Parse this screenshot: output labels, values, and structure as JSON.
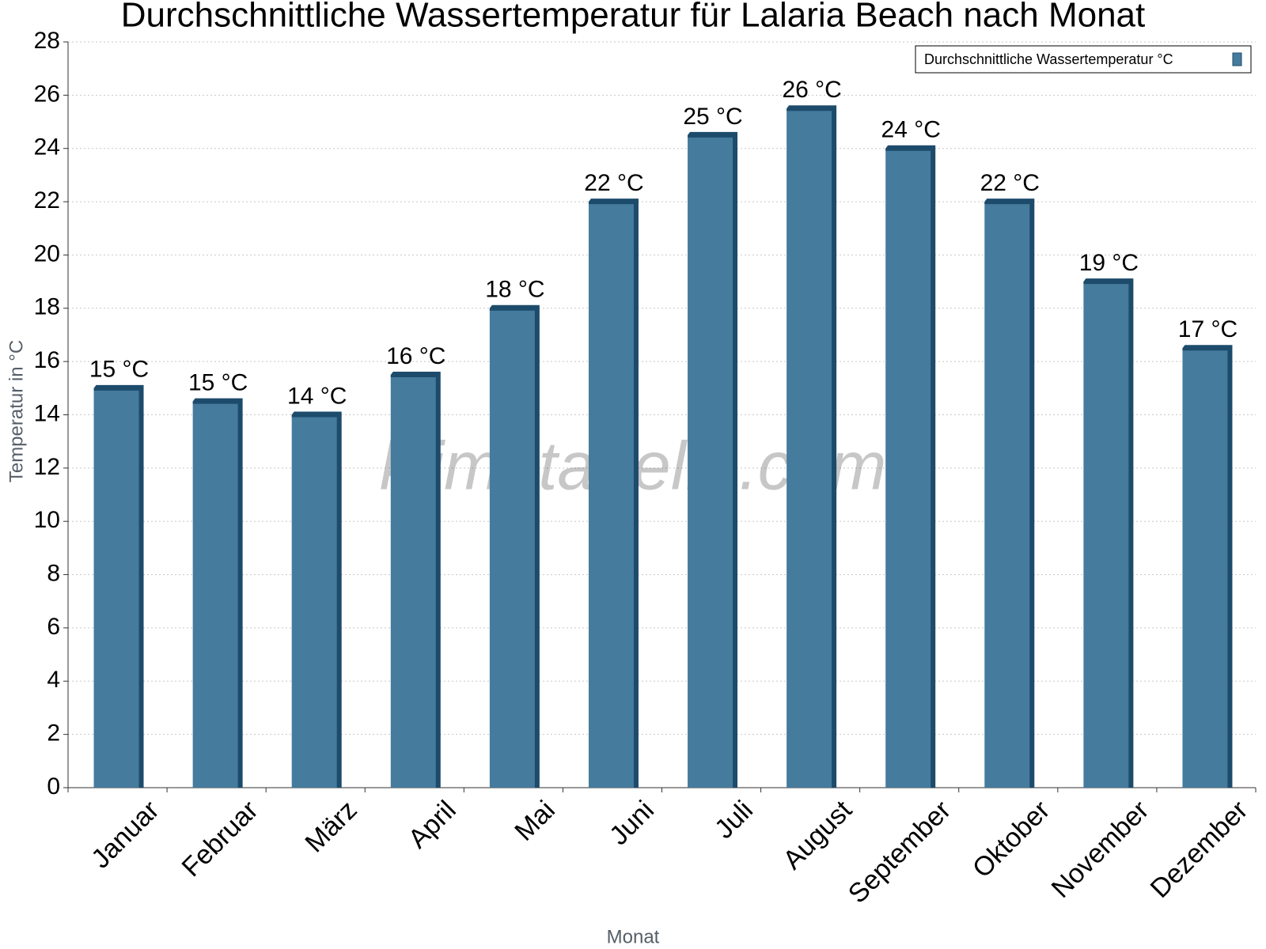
{
  "chart_data": {
    "type": "bar",
    "title": "Durchschnittliche Wassertemperatur für Lalaria Beach nach Monat",
    "x_label": "Monat",
    "y_label": "Temperatur in °C",
    "watermark": "klimatabelle.com",
    "categories": [
      "Januar",
      "Februar",
      "März",
      "April",
      "Mai",
      "Juni",
      "Juli",
      "August",
      "September",
      "Oktober",
      "November",
      "Dezember"
    ],
    "series": [
      {
        "name": "Durchschnittliche Wassertemperatur °C",
        "color": "#457b9d",
        "values": [
          15.0,
          14.5,
          14.0,
          15.5,
          18.0,
          22.0,
          24.5,
          25.5,
          24.0,
          22.0,
          19.0,
          16.5
        ],
        "value_labels": [
          "15 °C",
          "15 °C",
          "14 °C",
          "16 °C",
          "18 °C",
          "22 °C",
          "25 °C",
          "26 °C",
          "24 °C",
          "22 °C",
          "19 °C",
          "17 °C"
        ]
      }
    ],
    "ylim": [
      0,
      28
    ],
    "yticks": [
      0,
      2,
      4,
      6,
      8,
      10,
      12,
      14,
      16,
      18,
      20,
      22,
      24,
      26,
      28
    ],
    "grid": true,
    "legend": "top-right"
  }
}
